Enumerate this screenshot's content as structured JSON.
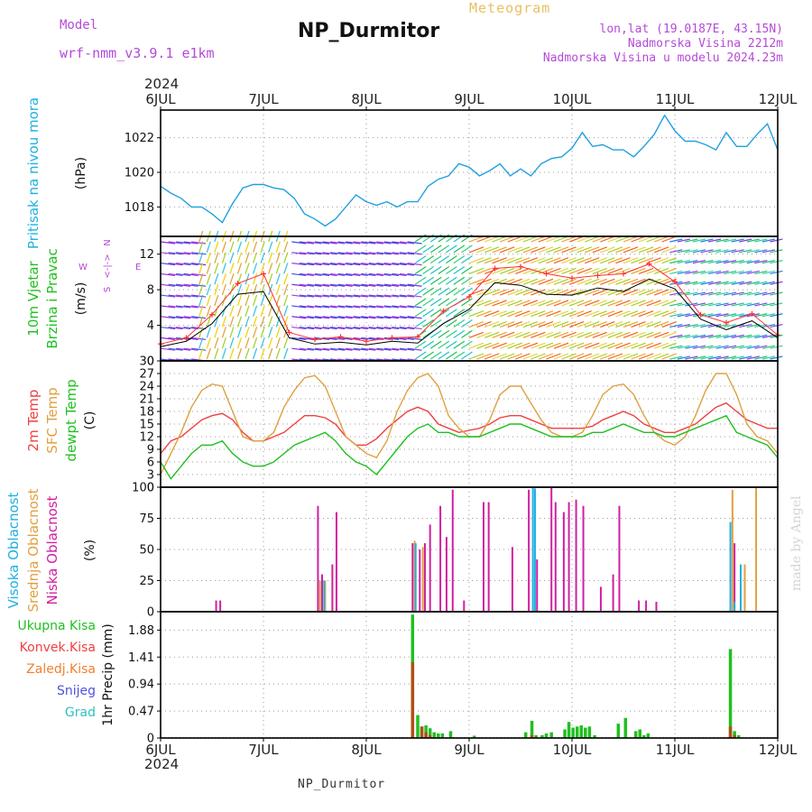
{
  "header": {
    "model_label": "Model",
    "model_name": "wrf-nmm_v3.9.1  e1km",
    "title": "NP_Durmitor",
    "subtitle": "Meteogram",
    "coords": "lon,lat (19.0187E, 43.15N)",
    "elevation": "Nadmorska Visina 2212m",
    "model_elevation": "Nadmorska Visina u modelu 2024.23m"
  },
  "dates": [
    "6JUL",
    "7JUL",
    "8JUL",
    "9JUL",
    "10JUL",
    "11JUL",
    "12JUL"
  ],
  "year": "2024",
  "footer": "NP_Durmitor",
  "credit": "made by Angel",
  "panels": {
    "pressure": {
      "labels": [
        {
          "text": "Pritisak na nivou mora",
          "color": "#20b0e0"
        }
      ],
      "unit": "(hPa)",
      "ticks": [
        "1018",
        "1020",
        "1022"
      ]
    },
    "wind": {
      "labels": [
        {
          "text": "10m Vjetar",
          "color": "#20c020"
        },
        {
          "text": "Brzina i Pravac",
          "color": "#20c020"
        }
      ],
      "unit": "(m/s)",
      "ticks": [
        "0",
        "4",
        "8",
        "12"
      ],
      "compass": {
        "n": "N",
        "s": "S",
        "e": "E",
        "w": "W",
        "arrow": "<-|->"
      }
    },
    "temp": {
      "labels": [
        {
          "text": "2m Temp",
          "color": "#f04040"
        },
        {
          "text": "SFC Temp",
          "color": "#e0a040"
        },
        {
          "text": "dewpt Temp",
          "color": "#20c020"
        }
      ],
      "unit": "(C)",
      "ticks": [
        "0",
        "3",
        "6",
        "9",
        "12",
        "15",
        "18",
        "21",
        "24",
        "27",
        "30"
      ]
    },
    "cloud": {
      "labels": [
        {
          "text": "Visoka Oblacnost",
          "color": "#20b0e0"
        },
        {
          "text": "Srednja Oblacnost",
          "color": "#e0a040"
        },
        {
          "text": "Niska Oblacnost",
          "color": "#d020a0"
        }
      ],
      "unit": "(%)",
      "ticks": [
        "0",
        "25",
        "50",
        "75",
        "100"
      ]
    },
    "precip": {
      "legend": [
        {
          "text": "Ukupna Kisa",
          "color": "#20c020"
        },
        {
          "text": "Konvek.Kisa",
          "color": "#f04040"
        },
        {
          "text": "Zaledj.Kisa",
          "color": "#f08030"
        },
        {
          "text": "Snijeg",
          "color": "#5050e0"
        },
        {
          "text": "Grad",
          "color": "#30c0c0"
        }
      ],
      "unit": "1hr Precip (mm)",
      "ticks": [
        "0",
        "0.47",
        "0.94",
        "1.41",
        "1.88"
      ]
    }
  },
  "chart_data": [
    {
      "type": "line",
      "panel": "pressure",
      "x_unit": "days since 6JUL 00Z",
      "xlim": [
        0,
        6
      ],
      "ylim": [
        1016.3,
        1023.6
      ],
      "series": [
        {
          "color": "#20a0e0",
          "x": [
            0,
            0.1,
            0.2,
            0.3,
            0.4,
            0.5,
            0.6,
            0.7,
            0.8,
            0.9,
            1.0,
            1.1,
            1.2,
            1.3,
            1.4,
            1.5,
            1.6,
            1.7,
            1.8,
            1.9,
            2.0,
            2.1,
            2.2,
            2.3,
            2.4,
            2.5,
            2.6,
            2.7,
            2.8,
            2.9,
            3.0,
            3.1,
            3.2,
            3.3,
            3.4,
            3.5,
            3.6,
            3.7,
            3.8,
            3.9,
            4.0,
            4.1,
            4.2,
            4.3,
            4.4,
            4.5,
            4.6,
            4.7,
            4.8,
            4.9,
            5.0,
            5.1,
            5.2,
            5.3,
            5.4,
            5.5,
            5.6,
            5.7,
            5.8,
            5.9,
            6.0
          ],
          "y": [
            1019.2,
            1018.8,
            1018.5,
            1018.0,
            1018.0,
            1017.6,
            1017.1,
            1018.2,
            1019.1,
            1019.3,
            1019.3,
            1019.1,
            1019.0,
            1018.5,
            1017.6,
            1017.3,
            1016.9,
            1017.3,
            1018.0,
            1018.7,
            1018.3,
            1018.1,
            1018.3,
            1018.0,
            1018.3,
            1018.3,
            1019.2,
            1019.6,
            1019.8,
            1020.5,
            1020.3,
            1019.8,
            1020.1,
            1020.5,
            1019.8,
            1020.2,
            1019.8,
            1020.5,
            1020.8,
            1020.9,
            1021.4,
            1022.3,
            1021.5,
            1021.6,
            1021.3,
            1021.3,
            1020.9,
            1021.5,
            1022.2,
            1023.3,
            1022.4,
            1021.8,
            1021.8,
            1021.6,
            1021.3,
            1022.3,
            1021.5,
            1021.5,
            1022.2,
            1022.8,
            1021.3
          ]
        }
      ]
    },
    {
      "type": "line",
      "panel": "wind",
      "x_unit": "days since 6JUL 00Z",
      "xlim": [
        0,
        6
      ],
      "ylim": [
        0,
        14
      ],
      "series": [
        {
          "name": "Brzina",
          "color": "#000000",
          "x": [
            0,
            0.25,
            0.5,
            0.75,
            1.0,
            1.25,
            1.5,
            1.75,
            2.0,
            2.25,
            2.5,
            2.75,
            3.0,
            3.25,
            3.5,
            3.75,
            4.0,
            4.25,
            4.5,
            4.75,
            5.0,
            5.25,
            5.5,
            5.75,
            6.0
          ],
          "y": [
            1.6,
            2.2,
            4.2,
            7.5,
            7.8,
            2.6,
            1.9,
            2.1,
            1.8,
            2.2,
            2.0,
            4.2,
            5.8,
            8.8,
            8.5,
            7.5,
            7.4,
            8.2,
            7.8,
            9.2,
            8.1,
            4.7,
            3.5,
            4.5,
            2.6
          ]
        },
        {
          "name": "Udari",
          "color": "#ff3030",
          "x": [
            0,
            0.25,
            0.5,
            0.75,
            1.0,
            1.25,
            1.5,
            1.75,
            2.0,
            2.25,
            2.5,
            2.75,
            3.0,
            3.25,
            3.5,
            3.75,
            4.0,
            4.25,
            4.5,
            4.75,
            5.0,
            5.25,
            5.5,
            5.75,
            6.0
          ],
          "y": [
            1.9,
            2.6,
            5.2,
            8.7,
            9.8,
            3.2,
            2.4,
            2.7,
            2.2,
            2.6,
            2.7,
            5.6,
            7.2,
            10.4,
            10.6,
            9.8,
            9.3,
            9.6,
            9.8,
            10.9,
            8.9,
            5.2,
            4.3,
            5.3,
            2.9
          ]
        }
      ]
    },
    {
      "type": "line",
      "panel": "temp",
      "x_unit": "days since 6JUL 00Z",
      "xlim": [
        0,
        6
      ],
      "ylim": [
        0,
        30
      ],
      "series": [
        {
          "name": "2m Temp",
          "color": "#f04040",
          "x": [
            0,
            0.1,
            0.2,
            0.3,
            0.4,
            0.5,
            0.6,
            0.7,
            0.8,
            0.9,
            1.0,
            1.1,
            1.2,
            1.3,
            1.4,
            1.5,
            1.6,
            1.7,
            1.8,
            1.9,
            2.0,
            2.1,
            2.2,
            2.3,
            2.4,
            2.5,
            2.6,
            2.7,
            2.8,
            2.9,
            3.0,
            3.1,
            3.2,
            3.3,
            3.4,
            3.5,
            3.6,
            3.7,
            3.8,
            3.9,
            4.0,
            4.1,
            4.2,
            4.3,
            4.4,
            4.5,
            4.6,
            4.7,
            4.8,
            4.9,
            5.0,
            5.1,
            5.2,
            5.3,
            5.4,
            5.5,
            5.6,
            5.7,
            5.8,
            5.9,
            6.0
          ],
          "y": [
            8,
            11,
            12,
            14,
            16,
            17,
            17.5,
            16,
            13,
            11,
            11,
            12,
            13,
            15,
            17,
            17,
            16.5,
            15,
            12,
            10,
            10,
            11.5,
            14,
            16,
            18,
            19,
            18,
            15,
            14,
            13,
            13.5,
            14,
            15,
            16.5,
            17,
            17,
            16,
            15,
            14,
            14,
            14,
            14,
            14.5,
            16,
            17,
            18,
            17,
            15,
            14,
            13,
            13,
            14,
            15,
            17,
            19,
            20,
            18,
            16,
            15,
            14,
            14
          ]
        },
        {
          "name": "SFC Temp",
          "color": "#e0a040",
          "x": [
            0,
            0.1,
            0.2,
            0.3,
            0.4,
            0.5,
            0.6,
            0.7,
            0.8,
            0.9,
            1.0,
            1.1,
            1.2,
            1.3,
            1.4,
            1.5,
            1.6,
            1.7,
            1.8,
            1.9,
            2.0,
            2.1,
            2.2,
            2.3,
            2.4,
            2.5,
            2.6,
            2.7,
            2.8,
            2.9,
            3.0,
            3.1,
            3.2,
            3.3,
            3.4,
            3.5,
            3.6,
            3.7,
            3.8,
            3.9,
            4.0,
            4.1,
            4.2,
            4.3,
            4.4,
            4.5,
            4.6,
            4.7,
            4.8,
            4.9,
            5.0,
            5.1,
            5.2,
            5.3,
            5.4,
            5.5,
            5.6,
            5.7,
            5.8,
            5.9,
            6.0
          ],
          "y": [
            3,
            8,
            13,
            19,
            23,
            24.5,
            24,
            18,
            12,
            11,
            11,
            13,
            19,
            23,
            26,
            26.5,
            24,
            18,
            12,
            10,
            8,
            7,
            11,
            18,
            23,
            26,
            27,
            24,
            17,
            14,
            12,
            12,
            16,
            22,
            24,
            24,
            20,
            16,
            13,
            12,
            12,
            13,
            17,
            22,
            24,
            24.5,
            22,
            17,
            13,
            11,
            10,
            12,
            17,
            23,
            27,
            27,
            22,
            15,
            12,
            11,
            8
          ]
        },
        {
          "name": "dewpt Temp",
          "color": "#20c020",
          "x": [
            0,
            0.1,
            0.2,
            0.3,
            0.4,
            0.5,
            0.6,
            0.7,
            0.8,
            0.9,
            1.0,
            1.1,
            1.2,
            1.3,
            1.4,
            1.5,
            1.6,
            1.7,
            1.8,
            1.9,
            2.0,
            2.1,
            2.2,
            2.3,
            2.4,
            2.5,
            2.6,
            2.7,
            2.8,
            2.9,
            3.0,
            3.1,
            3.2,
            3.3,
            3.4,
            3.5,
            3.6,
            3.7,
            3.8,
            3.9,
            4.0,
            4.1,
            4.2,
            4.3,
            4.4,
            4.5,
            4.6,
            4.7,
            4.8,
            4.9,
            5.0,
            5.1,
            5.2,
            5.3,
            5.4,
            5.5,
            5.6,
            5.7,
            5.8,
            5.9,
            6.0
          ],
          "y": [
            6,
            2,
            5,
            8,
            10,
            10,
            11,
            8,
            6,
            5,
            5,
            6,
            8,
            10,
            11,
            12,
            13,
            11,
            8,
            6,
            5,
            3,
            6,
            9,
            12,
            14,
            15,
            13,
            13,
            12,
            12,
            12,
            13,
            14,
            15,
            15,
            14,
            13,
            12,
            12,
            12,
            12,
            13,
            13,
            14,
            15,
            14,
            13,
            13,
            12,
            12,
            13,
            14,
            15,
            16,
            17,
            13,
            12,
            11,
            10,
            7
          ]
        }
      ]
    },
    {
      "type": "bar",
      "panel": "cloud",
      "x_unit": "days since 6JUL 00Z",
      "xlim": [
        0,
        6
      ],
      "ylim": [
        0,
        100
      ],
      "series": [
        {
          "name": "Niska Oblacnost",
          "color": "#d020a0",
          "x": [
            0.54,
            0.58,
            1.53,
            1.57,
            1.67,
            1.71,
            2.45,
            2.52,
            2.57,
            2.62,
            2.72,
            2.78,
            2.84,
            2.95,
            3.14,
            3.19,
            3.42,
            3.58,
            3.66,
            3.8,
            3.84,
            3.92,
            3.97,
            4.04,
            4.11,
            4.28,
            4.4,
            4.46,
            4.65,
            4.72,
            4.82,
            5.58
          ],
          "y": [
            9,
            9,
            85,
            30,
            38,
            80,
            55,
            50,
            55,
            70,
            85,
            60,
            98,
            9,
            88,
            88,
            52,
            98,
            42,
            100,
            88,
            80,
            88,
            90,
            85,
            20,
            30,
            85,
            9,
            9,
            8,
            55
          ]
        },
        {
          "name": "Srednja Oblacnost",
          "color": "#e0a040",
          "x": [
            1.55,
            1.6,
            2.47,
            2.55,
            5.56,
            5.68,
            5.79
          ],
          "y": [
            25,
            25,
            57,
            52,
            98,
            38,
            100
          ]
        },
        {
          "name": "Visoka Oblacnost",
          "color": "#20b0e0",
          "x": [
            1.59,
            2.48,
            3.62,
            3.64,
            5.54,
            5.58,
            5.64
          ],
          "y": [
            25,
            55,
            100,
            99,
            72,
            8,
            38
          ]
        }
      ]
    },
    {
      "type": "bar",
      "panel": "precip",
      "x_unit": "days since 6JUL 00Z",
      "xlim": [
        0,
        6
      ],
      "ylim": [
        0,
        2.2
      ],
      "series": [
        {
          "name": "Ukupna Kisa",
          "color": "#20c020",
          "x": [
            2.45,
            2.5,
            2.54,
            2.58,
            2.62,
            2.66,
            2.7,
            2.74,
            2.82,
            3.05,
            3.55,
            3.61,
            3.65,
            3.71,
            3.75,
            3.8,
            3.93,
            3.97,
            4.01,
            4.05,
            4.09,
            4.13,
            4.17,
            4.22,
            4.45,
            4.52,
            4.62,
            4.66,
            4.7,
            4.74,
            5.54,
            5.58,
            5.62
          ],
          "y": [
            2.15,
            0.4,
            0.2,
            0.22,
            0.17,
            0.1,
            0.08,
            0.08,
            0.12,
            0.04,
            0.1,
            0.3,
            0.05,
            0.05,
            0.08,
            0.1,
            0.15,
            0.28,
            0.18,
            0.2,
            0.22,
            0.18,
            0.2,
            0.05,
            0.25,
            0.35,
            0.12,
            0.15,
            0.05,
            0.08,
            1.55,
            0.12,
            0.05
          ]
        },
        {
          "name": "Konvek.Kisa",
          "color": "#b05018",
          "x": [
            2.45,
            2.54,
            2.58,
            2.62,
            3.61,
            5.54,
            5.58
          ],
          "y": [
            1.32,
            0.2,
            0.1,
            0.05,
            0.05,
            0.2,
            0.05
          ]
        }
      ]
    }
  ]
}
